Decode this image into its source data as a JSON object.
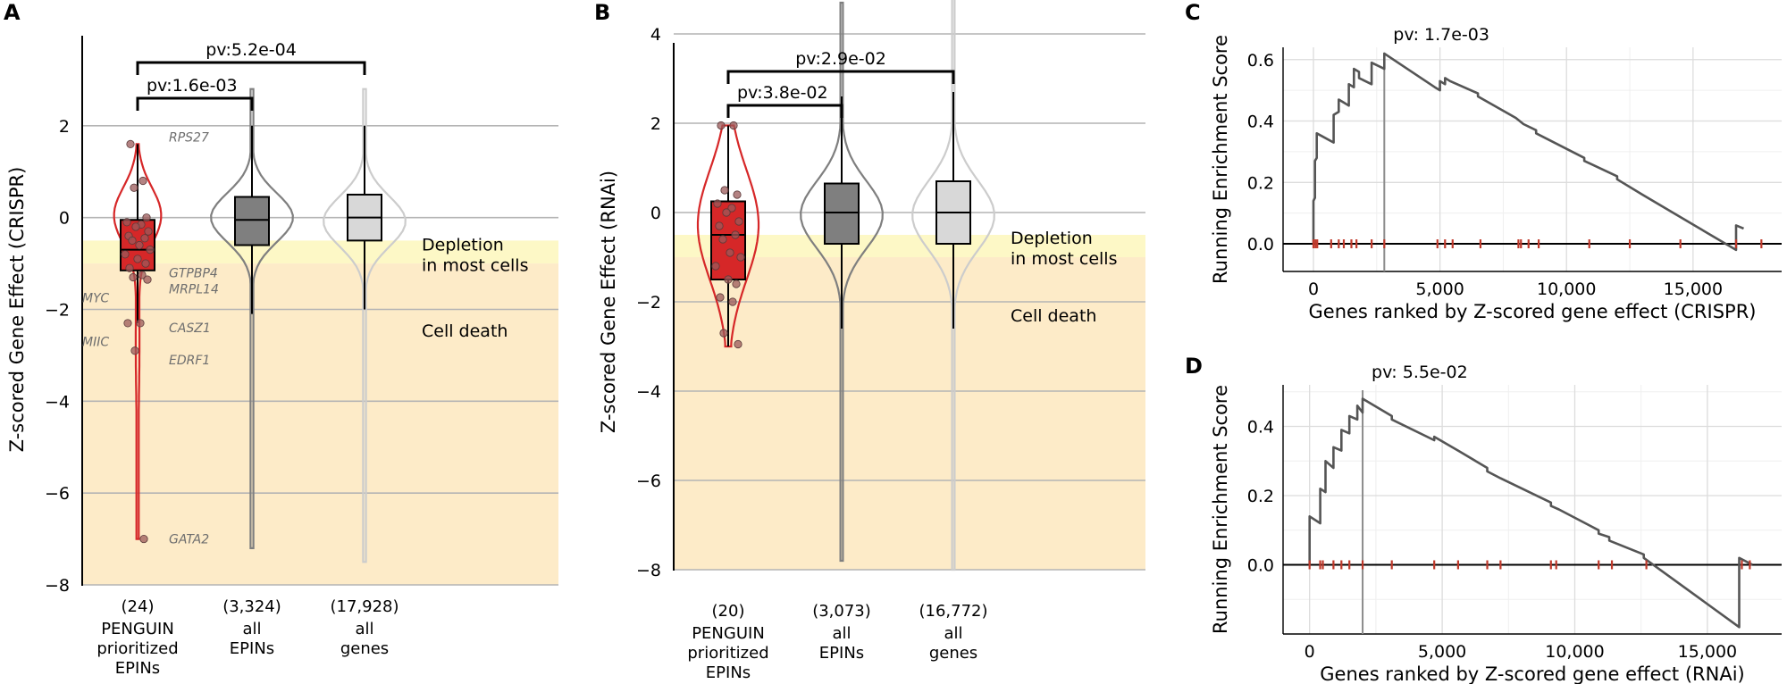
{
  "chart_data": [
    {
      "panel": "A",
      "type": "violin",
      "ylabel": "Z-scored Gene Effect (CRISPR)",
      "ylim": [
        -8,
        4
      ],
      "yticks": [
        2,
        0,
        -2,
        -4,
        -6,
        -8
      ],
      "ytick_labels": [
        "2",
        "0",
        "−2",
        "−4",
        "−6",
        "−8"
      ],
      "zones": [
        {
          "label": "Depletion\nin most cells",
          "from": -1.0,
          "to": -0.5,
          "color": "#fdf8c6"
        },
        {
          "label": "Cell death",
          "from": -8,
          "to": -1.0,
          "color": "#fdebc8"
        }
      ],
      "groups": [
        {
          "n_label": "(24)",
          "label": "PENGUIN\nprioritized\nEPINs",
          "color": "#d62728",
          "edge": "#d62728",
          "box": {
            "q1": -1.15,
            "median": -0.7,
            "q3": -0.05,
            "wlo": -2.3,
            "whi": 1.6
          },
          "range": [
            -7.0,
            1.6
          ]
        },
        {
          "n_label": "(3,324)",
          "label": "all\nEPINs",
          "color": "#7f7f7f",
          "edge": "#7f7f7f",
          "box": {
            "q1": -0.6,
            "median": -0.05,
            "q3": 0.45,
            "wlo": -2.1,
            "whi": 2.0
          },
          "range": [
            -7.2,
            2.8
          ]
        },
        {
          "n_label": "(17,928)",
          "label": "all\ngenes",
          "color": "#d8d8d8",
          "edge": "#cccccc",
          "box": {
            "q1": -0.5,
            "median": 0.0,
            "q3": 0.5,
            "wlo": -2.0,
            "whi": 2.0
          },
          "range": [
            -7.5,
            2.8
          ]
        }
      ],
      "points": [
        1.6,
        0.8,
        0.65,
        0.0,
        -0.1,
        -0.15,
        -0.2,
        -0.3,
        -0.4,
        -0.45,
        -0.5,
        -0.6,
        -0.7,
        -0.8,
        -0.9,
        -1.0,
        -1.1,
        -1.25,
        -1.3,
        -1.35,
        -2.3,
        -2.3,
        -2.9,
        -7.0
      ],
      "gene_labels": [
        {
          "text": "RPS27",
          "y": 1.75
        },
        {
          "text": "GTPBP4",
          "y": -1.2
        },
        {
          "text": "MRPL14",
          "y": -1.55
        },
        {
          "text": "MYC",
          "y": -1.75
        },
        {
          "text": "CASZ1",
          "y": -2.4
        },
        {
          "text": "MIIC",
          "y": -2.7
        },
        {
          "text": "EDRF1",
          "y": -3.1
        },
        {
          "text": "GATA2",
          "y": -7.0
        }
      ],
      "comparisons": [
        {
          "label": "pv:1.6e-03",
          "from": 0,
          "to": 1
        },
        {
          "label": "pv:5.2e-04",
          "from": 0,
          "to": 2
        }
      ]
    },
    {
      "panel": "B",
      "type": "violin",
      "ylabel": "Z-scored Gene Effect (RNAi)",
      "ylim": [
        -8,
        4
      ],
      "yticks": [
        4,
        2,
        0,
        -2,
        -4,
        -6,
        -8
      ],
      "ytick_labels": [
        "4",
        "2",
        "0",
        "−2",
        "−4",
        "−6",
        "−8"
      ],
      "zones": [
        {
          "label": "Depletion\nin most cells",
          "from": -1.0,
          "to": -0.5,
          "color": "#fdf8c6"
        },
        {
          "label": "Cell death",
          "from": -8,
          "to": -1.0,
          "color": "#fdebc8"
        }
      ],
      "groups": [
        {
          "n_label": "(20)",
          "label": "PENGUIN\nprioritized\nEPINs",
          "color": "#d62728",
          "edge": "#d62728",
          "box": {
            "q1": -1.5,
            "median": -0.5,
            "q3": 0.25,
            "wlo": -3.0,
            "whi": 1.95
          },
          "range": [
            -3.0,
            1.95
          ]
        },
        {
          "n_label": "(3,073)",
          "label": "all\nEPINs",
          "color": "#7f7f7f",
          "edge": "#7f7f7f",
          "box": {
            "q1": -0.7,
            "median": 0.0,
            "q3": 0.65,
            "wlo": -2.6,
            "whi": 2.6
          },
          "range": [
            -7.8,
            4.7
          ]
        },
        {
          "n_label": "(16,772)",
          "label": "all\ngenes",
          "color": "#d8d8d8",
          "edge": "#cccccc",
          "box": {
            "q1": -0.7,
            "median": 0.0,
            "q3": 0.7,
            "wlo": -2.6,
            "whi": 2.7
          },
          "range": [
            -8.0,
            4.8
          ]
        }
      ],
      "points": [
        1.95,
        1.95,
        0.5,
        0.4,
        0.2,
        0.1,
        0.0,
        -0.2,
        -0.3,
        -0.5,
        -0.6,
        -0.9,
        -1.0,
        -1.2,
        -1.5,
        -1.6,
        -1.9,
        -2.0,
        -2.7,
        -2.95
      ],
      "gene_labels": [],
      "comparisons": [
        {
          "label": "pv:3.8e-02",
          "from": 0,
          "to": 1
        },
        {
          "label": "pv:2.9e-02",
          "from": 0,
          "to": 2
        }
      ]
    },
    {
      "panel": "C",
      "type": "line",
      "title": "pv: 1.7e-03",
      "xlabel": "Genes ranked by Z-scored gene effect (CRISPR)",
      "ylabel": "Running Enrichment Score",
      "xlim": [
        -1200,
        18500
      ],
      "ylim": [
        -0.09,
        0.64
      ],
      "xticks": [
        0,
        5000,
        10000,
        15000
      ],
      "xtick_labels": [
        "0",
        "5,000",
        "10,000",
        "15,000"
      ],
      "yticks": [
        0.0,
        0.2,
        0.4,
        0.6
      ],
      "ytick_labels": [
        "0.0",
        "0.2",
        "0.4",
        "0.6"
      ],
      "peak_x": 2800,
      "x": [
        0,
        0,
        60,
        60,
        130,
        130,
        350,
        800,
        800,
        1000,
        1000,
        1200,
        1400,
        1400,
        1600,
        1600,
        1800,
        1800,
        2300,
        2300,
        2800,
        2800,
        4800,
        5000,
        5000,
        5200,
        5200,
        5400,
        6500,
        6500,
        8000,
        8000,
        8300,
        8300,
        8800,
        8800,
        10700,
        10700,
        12000,
        12000,
        13000,
        13000,
        16700,
        16700,
        17000
      ],
      "y": [
        0.0,
        0.14,
        0.15,
        0.27,
        0.28,
        0.36,
        0.35,
        0.33,
        0.42,
        0.43,
        0.47,
        0.46,
        0.45,
        0.52,
        0.51,
        0.57,
        0.56,
        0.54,
        0.52,
        0.59,
        0.57,
        0.62,
        0.51,
        0.5,
        0.53,
        0.52,
        0.54,
        0.53,
        0.49,
        0.48,
        0.41,
        0.41,
        0.39,
        0.39,
        0.37,
        0.36,
        0.28,
        0.27,
        0.22,
        0.21,
        0.16,
        0.16,
        -0.02,
        0.06,
        0.05
      ],
      "hits": [
        0,
        80,
        150,
        700,
        1000,
        1200,
        1500,
        1700,
        2300,
        2800,
        4900,
        5200,
        5500,
        6600,
        8100,
        8200,
        8500,
        8900,
        10900,
        12500,
        14500,
        16700,
        17700
      ]
    },
    {
      "panel": "D",
      "type": "line",
      "title": "pv: 5.5e-02",
      "xlabel": "Genes ranked by Z-scored gene effect (RNAi)",
      "ylabel": "Running Enrichment Score",
      "xlim": [
        -1000,
        17800
      ],
      "ylim": [
        -0.2,
        0.52
      ],
      "xticks": [
        0,
        5000,
        10000,
        15000
      ],
      "xtick_labels": [
        "0",
        "5,000",
        "10,000",
        "15,000"
      ],
      "yticks": [
        0.0,
        0.2,
        0.4
      ],
      "ytick_labels": [
        "0.0",
        "0.2",
        "0.4"
      ],
      "peak_x": 2000,
      "x": [
        0,
        0,
        400,
        400,
        600,
        600,
        900,
        900,
        1200,
        1200,
        1500,
        1500,
        1800,
        1800,
        2000,
        2000,
        3100,
        3100,
        4700,
        4700,
        5600,
        5600,
        6700,
        6700,
        7200,
        7200,
        9100,
        9100,
        9400,
        9400,
        10900,
        10900,
        11300,
        11300,
        12600,
        12600,
        16200,
        16200,
        16700
      ],
      "y": [
        0.0,
        0.14,
        0.12,
        0.22,
        0.21,
        0.3,
        0.28,
        0.34,
        0.33,
        0.39,
        0.38,
        0.43,
        0.42,
        0.46,
        0.44,
        0.48,
        0.43,
        0.42,
        0.36,
        0.37,
        0.33,
        0.33,
        0.28,
        0.27,
        0.25,
        0.25,
        0.18,
        0.17,
        0.16,
        0.16,
        0.1,
        0.09,
        0.08,
        0.07,
        0.03,
        0.02,
        -0.18,
        0.02,
        0.0
      ],
      "hits": [
        0,
        400,
        500,
        900,
        1200,
        1500,
        2000,
        3100,
        4700,
        5600,
        6700,
        7200,
        9100,
        9300,
        10900,
        11400,
        12700,
        16300,
        16600
      ]
    }
  ],
  "panel_letters": {
    "A": "A",
    "B": "B",
    "C": "C",
    "D": "D"
  }
}
